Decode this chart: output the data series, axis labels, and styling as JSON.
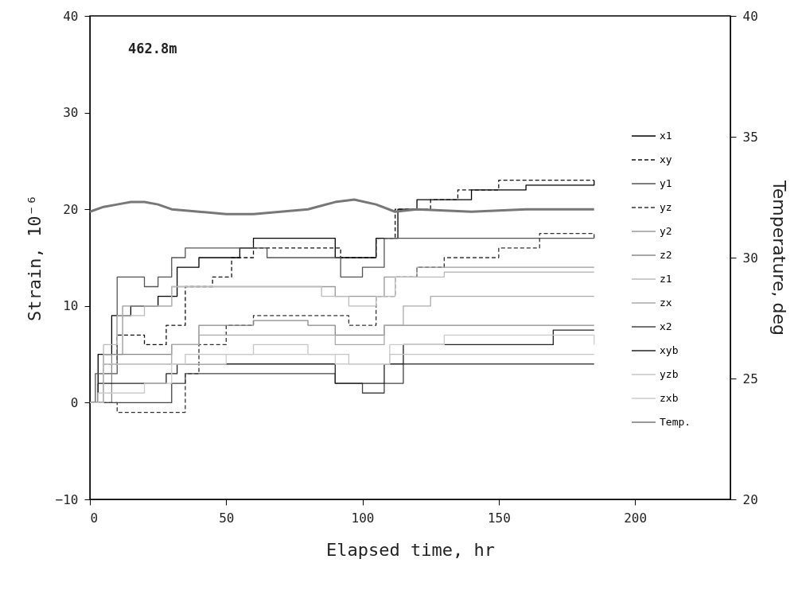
{
  "chart_data": {
    "type": "step",
    "xlabel": "Elapsed time, hr",
    "ylabel": "Strain, 10⁻⁶",
    "y2label": "Temperature, deg",
    "annotations": [
      "462.8m"
    ],
    "xlim": [
      0,
      235
    ],
    "xticks": [
      0,
      50,
      100,
      150,
      200
    ],
    "ylim": [
      -10,
      40
    ],
    "yticks": [
      -10,
      0,
      10,
      20,
      30,
      40
    ],
    "y2lim": [
      20,
      40
    ],
    "y2ticks": [
      20,
      25,
      30,
      35,
      40
    ],
    "grid": false,
    "legend": "right",
    "marker": "none",
    "series": [
      {
        "name": "x1",
        "color": "#000000",
        "x": [
          0,
          3,
          8,
          15,
          25,
          32,
          40,
          55,
          60,
          85,
          90,
          100,
          105,
          113,
          120,
          140,
          160,
          185
        ],
        "values": [
          0,
          5,
          9,
          10,
          11,
          14,
          15,
          16,
          17,
          17,
          15,
          15,
          17,
          20,
          21,
          22,
          22.5,
          23
        ]
      },
      {
        "name": "xy",
        "color": "#111111",
        "line_style": "dashed",
        "x": [
          0,
          5,
          10,
          20,
          28,
          35,
          45,
          52,
          60,
          85,
          92,
          105,
          112,
          125,
          135,
          150,
          185
        ],
        "values": [
          0,
          4,
          7,
          6,
          8,
          12,
          13,
          15,
          16,
          16,
          15,
          17,
          20,
          21,
          22,
          23,
          23
        ]
      },
      {
        "name": "y1",
        "color": "#555555",
        "x": [
          0,
          2,
          10,
          20,
          25,
          30,
          35,
          60,
          65,
          85,
          92,
          100,
          108,
          130,
          185
        ],
        "values": [
          0,
          3,
          13,
          12,
          13,
          15,
          16,
          16,
          15,
          15,
          13,
          14,
          17,
          17,
          17
        ]
      },
      {
        "name": "yz",
        "color": "#333333",
        "line_style": "dashed",
        "x": [
          0,
          10,
          30,
          35,
          40,
          50,
          60,
          85,
          95,
          100,
          105,
          112,
          120,
          130,
          150,
          165,
          185
        ],
        "values": [
          0,
          -1,
          -1,
          3,
          6,
          8,
          9,
          9,
          8,
          8,
          11,
          13,
          14,
          15,
          16,
          17.5,
          17
        ]
      },
      {
        "name": "y2",
        "color": "#999999",
        "x": [
          0,
          5,
          12,
          20,
          30,
          50,
          80,
          90,
          100,
          108,
          120,
          185
        ],
        "values": [
          0,
          5,
          10,
          10,
          12,
          12,
          12,
          11,
          11,
          13,
          14,
          14
        ]
      },
      {
        "name": "z2",
        "color": "#888888",
        "x": [
          0,
          8,
          20,
          30,
          40,
          60,
          80,
          90,
          100,
          108,
          120,
          185
        ],
        "values": [
          0,
          5,
          5,
          6,
          8,
          8.5,
          8,
          7,
          7,
          8,
          8,
          8
        ]
      },
      {
        "name": "z1",
        "color": "#bbbbbb",
        "x": [
          0,
          5,
          10,
          20,
          30,
          80,
          85,
          95,
          105,
          112,
          130,
          185
        ],
        "values": [
          0,
          6,
          9,
          10,
          12,
          12,
          11,
          10,
          11,
          13,
          13.5,
          13.5
        ]
      },
      {
        "name": "zx",
        "color": "#aaaaaa",
        "x": [
          0,
          5,
          20,
          30,
          40,
          80,
          90,
          100,
          108,
          115,
          125,
          185
        ],
        "values": [
          0,
          4,
          4,
          6,
          7,
          7,
          6,
          6,
          8,
          10,
          11,
          11
        ]
      },
      {
        "name": "x2",
        "color": "#444444",
        "x": [
          0,
          25,
          30,
          35,
          70,
          90,
          100,
          108,
          115,
          185
        ],
        "values": [
          0,
          0,
          2,
          3,
          3,
          2,
          1,
          2,
          4,
          4
        ]
      },
      {
        "name": "xyb",
        "color": "#222222",
        "x": [
          0,
          3,
          20,
          28,
          32,
          60,
          80,
          90,
          100,
          108,
          115,
          130,
          170,
          185
        ],
        "values": [
          0,
          2,
          2,
          3,
          4,
          4,
          4,
          2,
          2,
          4,
          6,
          6,
          7.5,
          7.5
        ]
      },
      {
        "name": "yzb",
        "color": "#c4c4c4",
        "x": [
          0,
          5,
          25,
          35,
          60,
          80,
          95,
          110,
          125,
          185
        ],
        "values": [
          0,
          4,
          4,
          5,
          6,
          5,
          4,
          5,
          5,
          5
        ]
      },
      {
        "name": "zxb",
        "color": "#cccccc",
        "x": [
          0,
          3,
          20,
          30,
          50,
          80,
          90,
          100,
          110,
          130,
          185
        ],
        "values": [
          0,
          1,
          2,
          4,
          5,
          5,
          4,
          4,
          6,
          7,
          6
        ]
      },
      {
        "name": "Temp.",
        "color": "#777777",
        "type": "line",
        "axis": "y2",
        "x": [
          0,
          5,
          10,
          15,
          20,
          25,
          30,
          40,
          50,
          60,
          70,
          80,
          90,
          97,
          105,
          112,
          120,
          140,
          160,
          185
        ],
        "values": [
          31.9,
          32.1,
          32.2,
          32.3,
          32.3,
          32.2,
          32.0,
          31.9,
          31.8,
          31.8,
          31.9,
          32.0,
          32.3,
          32.4,
          32.2,
          31.9,
          32.0,
          31.9,
          32.0,
          32.0
        ]
      }
    ]
  }
}
